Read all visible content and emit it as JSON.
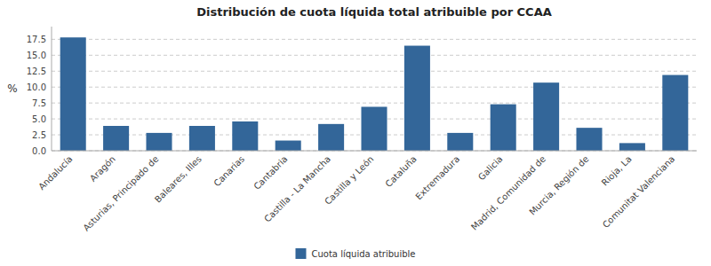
{
  "chart_data": {
    "type": "bar",
    "title": "Distribución de cuota líquida total atribuible por CCAA",
    "categories": [
      "Andalucía",
      "Aragón",
      "Asturias, Principado de",
      "Baleares, Illes",
      "Canarias",
      "Cantabria",
      "Castilla - La Mancha",
      "Castilla y León",
      "Cataluña",
      "Extremadura",
      "Galicia",
      "Madrid, Comunidad de",
      "Murcia, Región de",
      "Rioja, La",
      "Comunitat Valenciana"
    ],
    "series": [
      {
        "name": "Cuota líquida atribuible",
        "color": "#336699",
        "values": [
          17.8,
          3.9,
          2.8,
          3.9,
          4.6,
          1.6,
          4.2,
          6.9,
          16.5,
          2.8,
          7.3,
          10.7,
          3.6,
          1.2,
          11.9
        ]
      }
    ],
    "ylabel": "%",
    "ylim": [
      0,
      19.5
    ],
    "yticks": [
      {
        "value": 0,
        "label": "0.0"
      },
      2.5,
      {
        "value": 5,
        "label": "5.0"
      },
      7.5,
      {
        "value": 10,
        "label": "10.0"
      },
      12.5,
      {
        "value": 15,
        "label": "15.0"
      },
      17.5
    ],
    "grid": true,
    "legend": "bottom"
  }
}
